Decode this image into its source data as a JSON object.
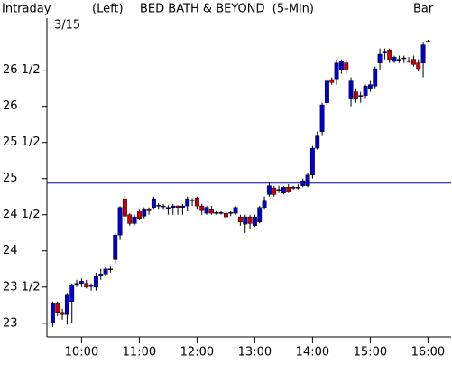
{
  "chart_data": {
    "type": "candlestick",
    "header": {
      "period": "Intraday",
      "date": "3/15",
      "axis_side": "(Left)",
      "title": "BED BATH & BEYOND  (5-Min)",
      "style": "Bar"
    },
    "x": [
      "9:30",
      "9:35",
      "9:40",
      "9:45",
      "9:50",
      "9:55",
      "10:00",
      "10:05",
      "10:10",
      "10:15",
      "10:20",
      "10:25",
      "10:30",
      "10:35",
      "10:40",
      "10:45",
      "10:50",
      "10:55",
      "11:00",
      "11:05",
      "11:10",
      "11:15",
      "11:20",
      "11:25",
      "11:30",
      "11:35",
      "11:40",
      "11:45",
      "11:50",
      "11:55",
      "12:00",
      "12:05",
      "12:10",
      "12:15",
      "12:20",
      "12:25",
      "12:30",
      "12:35",
      "12:40",
      "12:45",
      "12:50",
      "12:55",
      "13:00",
      "13:05",
      "13:10",
      "13:15",
      "13:20",
      "13:25",
      "13:30",
      "13:35",
      "13:40",
      "13:45",
      "13:50",
      "13:55",
      "14:00",
      "14:05",
      "14:10",
      "14:15",
      "14:20",
      "14:25",
      "14:30",
      "14:35",
      "14:40",
      "14:45",
      "14:50",
      "14:55",
      "15:00",
      "15:05",
      "15:10",
      "15:15",
      "15:20",
      "15:25",
      "15:30",
      "15:35",
      "15:40",
      "15:45",
      "15:50",
      "15:55",
      "16:00"
    ],
    "open": [
      23.0,
      23.28,
      23.15,
      23.12,
      23.3,
      23.55,
      23.55,
      23.55,
      23.52,
      23.5,
      23.65,
      23.68,
      23.75,
      23.88,
      24.22,
      24.72,
      24.5,
      24.38,
      24.55,
      24.48,
      24.58,
      24.6,
      24.63,
      24.62,
      24.6,
      24.6,
      24.62,
      24.6,
      24.62,
      24.7,
      24.73,
      24.62,
      24.52,
      24.58,
      24.53,
      24.53,
      24.52,
      24.52,
      24.52,
      24.47,
      24.37,
      24.47,
      24.35,
      24.4,
      24.6,
      24.78,
      24.87,
      24.85,
      24.8,
      24.88,
      24.87,
      24.88,
      24.9,
      24.9,
      25.05,
      25.42,
      25.65,
      26.05,
      26.37,
      26.38,
      26.5,
      26.6,
      26.1,
      26.2,
      26.15,
      26.15,
      26.25,
      26.28,
      26.6,
      26.75,
      26.78,
      26.62,
      26.65,
      26.67,
      26.63,
      26.65,
      26.6,
      26.6,
      26.9
    ],
    "high": [
      23.3,
      23.3,
      23.2,
      23.42,
      23.55,
      23.6,
      23.62,
      23.6,
      23.55,
      23.7,
      23.75,
      23.78,
      23.8,
      24.25,
      24.62,
      24.82,
      24.52,
      24.5,
      24.58,
      24.6,
      24.6,
      24.75,
      24.66,
      24.65,
      24.63,
      24.65,
      24.63,
      24.65,
      24.75,
      24.73,
      24.75,
      24.65,
      24.62,
      24.62,
      24.56,
      24.56,
      24.55,
      24.55,
      24.62,
      24.5,
      24.5,
      24.5,
      24.5,
      24.62,
      24.75,
      24.95,
      24.9,
      24.9,
      24.9,
      24.92,
      24.9,
      24.92,
      25.0,
      25.08,
      25.45,
      25.65,
      26.05,
      26.38,
      26.4,
      26.65,
      26.65,
      26.65,
      26.4,
      26.25,
      26.2,
      26.3,
      26.35,
      26.55,
      26.8,
      26.8,
      26.8,
      26.7,
      26.7,
      26.7,
      26.68,
      26.7,
      26.65,
      26.88,
      26.92
    ],
    "low": [
      22.95,
      23.1,
      23.05,
      22.98,
      23.0,
      23.5,
      23.5,
      23.48,
      23.45,
      23.45,
      23.6,
      23.65,
      23.7,
      23.82,
      24.15,
      24.4,
      24.35,
      24.35,
      24.42,
      24.45,
      24.5,
      24.58,
      24.58,
      24.58,
      24.5,
      24.5,
      24.5,
      24.5,
      24.55,
      24.62,
      24.58,
      24.5,
      24.5,
      24.5,
      24.5,
      24.5,
      24.45,
      24.48,
      24.5,
      24.35,
      24.25,
      24.3,
      24.33,
      24.38,
      24.58,
      24.75,
      24.75,
      24.8,
      24.78,
      24.8,
      24.85,
      24.85,
      24.88,
      24.88,
      25.0,
      25.4,
      25.6,
      26.0,
      26.3,
      26.3,
      26.45,
      26.45,
      26.0,
      26.05,
      26.05,
      26.1,
      26.2,
      26.25,
      26.5,
      26.65,
      26.6,
      26.6,
      26.6,
      26.6,
      26.6,
      26.55,
      26.48,
      26.4,
      26.88
    ],
    "close": [
      23.28,
      23.15,
      23.12,
      23.4,
      23.52,
      23.55,
      23.58,
      23.5,
      23.52,
      23.65,
      23.68,
      23.75,
      23.75,
      24.22,
      24.6,
      24.48,
      24.38,
      24.47,
      24.45,
      24.58,
      24.57,
      24.72,
      24.63,
      24.62,
      24.6,
      24.62,
      24.6,
      24.62,
      24.72,
      24.7,
      24.62,
      24.57,
      24.6,
      24.52,
      24.53,
      24.53,
      24.47,
      24.53,
      24.6,
      24.4,
      24.47,
      24.38,
      24.47,
      24.6,
      24.7,
      24.9,
      24.78,
      24.85,
      24.88,
      24.82,
      24.88,
      24.88,
      24.97,
      25.05,
      25.42,
      25.6,
      26.02,
      26.35,
      26.33,
      26.6,
      26.62,
      26.5,
      26.35,
      26.1,
      26.15,
      26.28,
      26.3,
      26.52,
      26.72,
      26.75,
      26.65,
      26.68,
      26.65,
      26.67,
      26.63,
      26.58,
      26.52,
      26.85,
      26.9
    ],
    "up_color": "#0000cc",
    "down_color": "#cc0000",
    "wick_color": "#000000",
    "reference_line": 24.9375,
    "reference_color": "#0000aa",
    "xlim": [
      "9:24",
      "16:24"
    ],
    "xticks": [
      "10:00",
      "11:00",
      "12:00",
      "13:00",
      "14:00",
      "15:00",
      "16:00"
    ],
    "ylim": [
      22.81,
      27.22
    ],
    "yticks": [
      23,
      {
        "value": 23.5,
        "label": "23 1/2"
      },
      24,
      {
        "value": 24.5,
        "label": "24 1/2"
      },
      25,
      {
        "value": 25.5,
        "label": "25 1/2"
      },
      26,
      {
        "value": 26.5,
        "label": "26 1/2"
      }
    ]
  }
}
